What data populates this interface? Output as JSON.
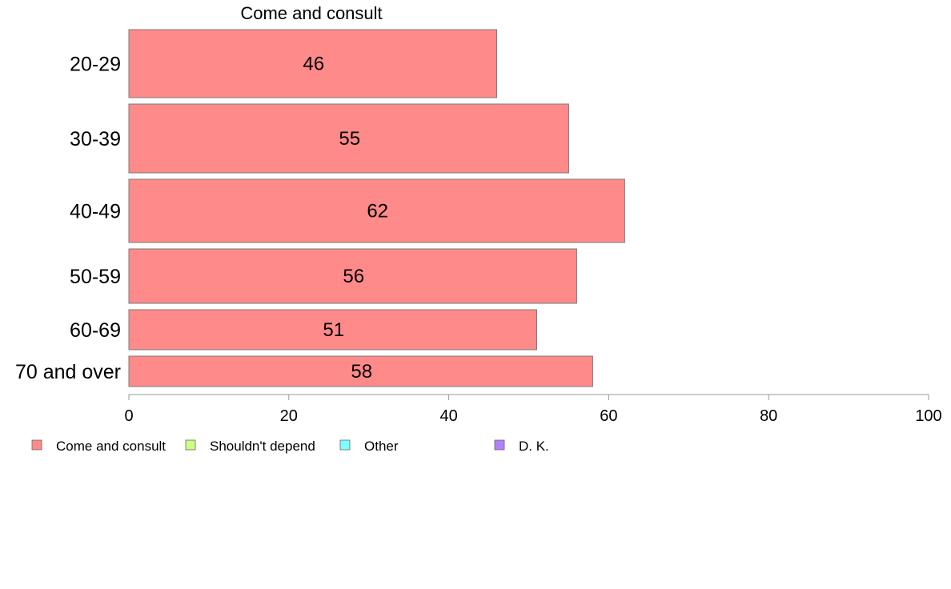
{
  "chart_data": {
    "type": "bar",
    "orientation": "horizontal",
    "title": "Come and consult",
    "categories": [
      "20-29",
      "30-39",
      "40-49",
      "50-59",
      "60-69",
      "70 and over"
    ],
    "series": [
      {
        "name": "Come and consult",
        "color": "#ff8a8a",
        "values": [
          46,
          55,
          62,
          56,
          51,
          58
        ],
        "labels": [
          "46",
          "55",
          "62",
          "56",
          "51",
          "58"
        ]
      }
    ],
    "xlim": [
      0,
      100
    ],
    "xticks": [
      0,
      20,
      40,
      60,
      80,
      100
    ],
    "xtick_labels": [
      "0",
      "20",
      "40",
      "60",
      "80",
      "100"
    ],
    "grid": false,
    "legend_position": "bottom",
    "legend": [
      {
        "label": "Come and consult",
        "color": "#ff8a8a"
      },
      {
        "label": "Shouldn't depend",
        "color": "#ccff80"
      },
      {
        "label": "Other",
        "color": "#80ffff"
      },
      {
        "label": "D. K.",
        "color": "#b380ff"
      }
    ],
    "bar_outline_color": "#7a7a7a",
    "axis_color": "#999999"
  }
}
